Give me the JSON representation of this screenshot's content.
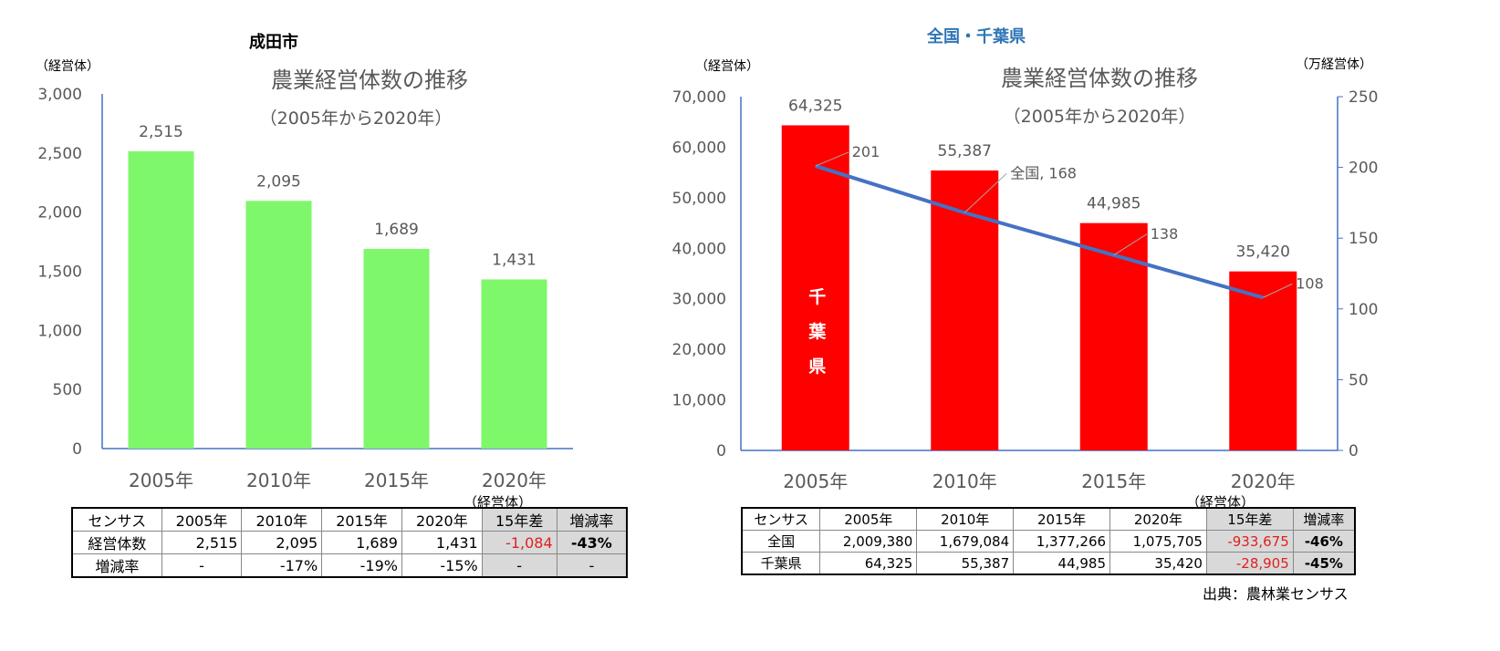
{
  "chart_data": [
    {
      "type": "bar",
      "heading": "成田市",
      "title": "農業経営体数の推移",
      "subtitle": "（2005年から2020年）",
      "ylabel": "（経営体）",
      "categories": [
        "2005年",
        "2010年",
        "2015年",
        "2020年"
      ],
      "values": [
        2515,
        2095,
        1689,
        1431
      ],
      "data_labels": [
        "2,515",
        "2,095",
        "1,689",
        "1,431"
      ],
      "ylim": [
        0,
        3000
      ],
      "yticks": [
        "0",
        "500",
        "1,000",
        "1,500",
        "2,000",
        "2,500",
        "3,000"
      ],
      "color": "#7ef76a",
      "axis_color": "#4472c4",
      "grid": false
    },
    {
      "type": "bar+line",
      "heading": "全国・千葉県",
      "title": "農業経営体数の推移",
      "subtitle": "（2005年から2020年）",
      "ylabel": "（経営体）",
      "y2label": "（万経営体）",
      "categories": [
        "2005年",
        "2010年",
        "2015年",
        "2020年"
      ],
      "series": [
        {
          "name": "千葉県",
          "type": "bar",
          "axis": "left",
          "values": [
            64325,
            55387,
            44985,
            35420
          ],
          "data_labels": [
            "64,325",
            "55,387",
            "44,985",
            "35,420"
          ],
          "color": "#ff0000"
        },
        {
          "name": "全国",
          "type": "line",
          "axis": "right",
          "values": [
            201,
            168,
            138,
            108
          ],
          "data_labels": [
            "201",
            "全国, 168",
            "138",
            "108"
          ],
          "color": "#4472c4"
        }
      ],
      "ylim": [
        0,
        70000
      ],
      "y2lim": [
        0,
        250
      ],
      "yticks": [
        "0",
        "10,000",
        "20,000",
        "30,000",
        "40,000",
        "50,000",
        "60,000",
        "70,000"
      ],
      "y2ticks": [
        "0",
        "50",
        "100",
        "150",
        "200",
        "250"
      ],
      "grid": false
    }
  ],
  "table_left": {
    "unit": "（経営体）",
    "header": [
      "センサス",
      "2005年",
      "2010年",
      "2015年",
      "2020年",
      "15年差",
      "増減率"
    ],
    "rows": [
      [
        "経営体数",
        "2,515",
        "2,095",
        "1,689",
        "1,431",
        "-1,084",
        "-43%"
      ],
      [
        "増減率",
        "-",
        "-17%",
        "-19%",
        "-15%",
        "-",
        "-"
      ]
    ]
  },
  "table_right": {
    "unit": "（経営体）",
    "header": [
      "センサス",
      "2005年",
      "2010年",
      "2015年",
      "2020年",
      "15年差",
      "増減率"
    ],
    "rows": [
      [
        "全国",
        "2,009,380",
        "1,679,084",
        "1,377,266",
        "1,075,705",
        "-933,675",
        "-46%"
      ],
      [
        "千葉県",
        "64,325",
        "55,387",
        "44,985",
        "35,420",
        "-28,905",
        "-45%"
      ]
    ]
  },
  "source": "出典：農林業センサス"
}
